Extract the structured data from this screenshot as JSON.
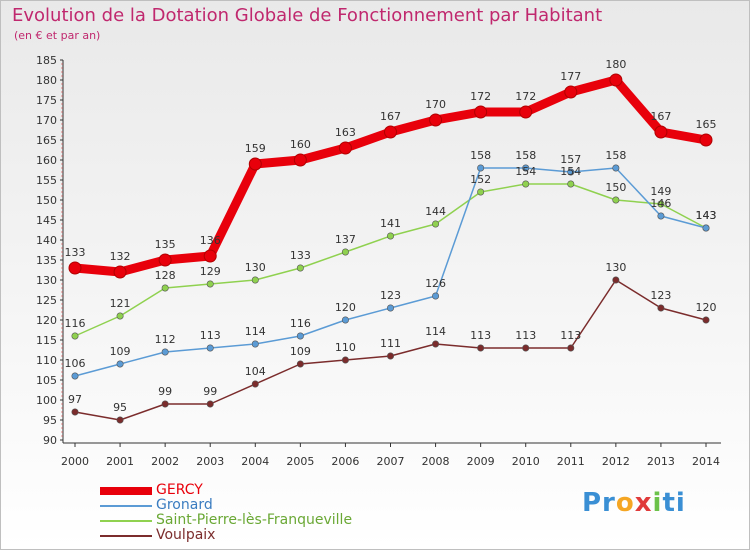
{
  "chart_data": {
    "type": "line",
    "title": "Evolution de la Dotation Globale de Fonctionnement par Habitant",
    "subtitle": "(en € et par an)",
    "x": [
      "2000",
      "2001",
      "2002",
      "2003",
      "2004",
      "2005",
      "2006",
      "2007",
      "2008",
      "2009",
      "2010",
      "2011",
      "2012",
      "2013",
      "2014"
    ],
    "ylim": [
      90,
      185
    ],
    "yticks": [
      90,
      95,
      100,
      105,
      110,
      115,
      120,
      125,
      130,
      135,
      140,
      145,
      150,
      155,
      160,
      165,
      170,
      175,
      180,
      185
    ],
    "grid": false,
    "legend_position": "bottom-left",
    "series": [
      {
        "name": "GERCY",
        "color": "#e8000b",
        "values": [
          133,
          132,
          135,
          136,
          159,
          160,
          163,
          167,
          170,
          172,
          172,
          177,
          180,
          167,
          165
        ]
      },
      {
        "name": "Gronard",
        "color": "#5b9bd5",
        "values": [
          106,
          109,
          112,
          113,
          114,
          116,
          120,
          123,
          126,
          158,
          158,
          157,
          158,
          146,
          143
        ]
      },
      {
        "name": "Saint-Pierre-lès-Franqueville",
        "color": "#8fd14f",
        "values": [
          116,
          121,
          128,
          129,
          130,
          133,
          137,
          141,
          144,
          152,
          154,
          154,
          150,
          149,
          143
        ]
      },
      {
        "name": "Voulpaix",
        "color": "#7b2c2c",
        "values": [
          97,
          95,
          99,
          99,
          104,
          109,
          110,
          111,
          114,
          113,
          113,
          113,
          130,
          123,
          120
        ]
      }
    ],
    "data_labels": [
      {
        "series": 0,
        "labels": [
          "133",
          "132",
          "135",
          "136",
          "159",
          "160",
          "163",
          "167",
          "170",
          "172",
          "172",
          "177",
          "180",
          "167",
          "165"
        ]
      },
      {
        "series": 1,
        "labels": [
          "106",
          "109",
          "112",
          "113",
          "114",
          "116",
          "120",
          "123",
          "126",
          "158",
          "158",
          "157",
          "158",
          "146",
          "143"
        ]
      },
      {
        "series": 2,
        "labels": [
          "116",
          "121",
          "128",
          "129",
          "130",
          "133",
          "137",
          "141",
          "144",
          "152",
          "154",
          "154",
          "150",
          "149",
          "143"
        ]
      },
      {
        "series": 3,
        "labels": [
          "97",
          "95",
          "99",
          "99",
          "104",
          "109",
          "110",
          "111",
          "114",
          "113",
          "113",
          "113",
          "130",
          "123",
          "120"
        ]
      }
    ]
  },
  "logo": {
    "parts": [
      "Pr",
      "o",
      "x",
      "i",
      "ti"
    ],
    "colors": [
      "#3a8fd4",
      "#f5a623",
      "#e03b3b",
      "#6cc24a",
      "#3a8fd4"
    ]
  }
}
